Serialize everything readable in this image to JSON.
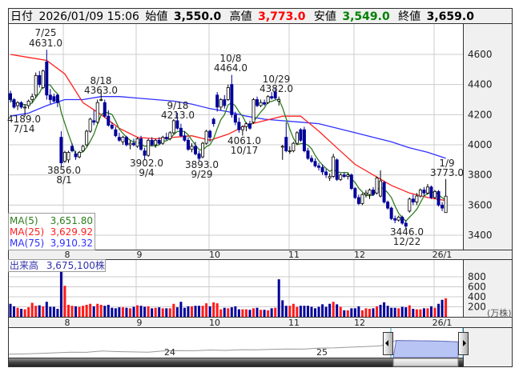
{
  "header": {
    "date_label": "日付",
    "date_value": "2026/01/09 15:06",
    "open_label": "始値",
    "open_value": "3,550.0",
    "high_label": "高値",
    "high_value": "3,773.0",
    "low_label": "安値",
    "low_value": "3,549.0",
    "close_label": "終値",
    "close_value": "3,659.0"
  },
  "colors": {
    "up_candle": "#ffffff",
    "down_candle": "#000099",
    "ma5": "#2e7d1e",
    "ma25": "#ff2020",
    "ma75": "#3030ff",
    "vol_up": "#ff1a1a",
    "vol_down": "#000099",
    "high": "#ff0000",
    "low": "#008000",
    "navigator_fill": "#b8c4f4"
  },
  "legend": [
    {
      "name": "MA(5)",
      "value": "3,651.80"
    },
    {
      "name": "MA(25)",
      "value": "3,629.92"
    },
    {
      "name": "MA(75)",
      "value": "3,910.32"
    }
  ],
  "volume_panel": {
    "label": "出来高",
    "value": "3,675,100株",
    "unit": "(万株)",
    "ticks": [
      "800",
      "600",
      "400",
      "200"
    ]
  },
  "chart_data": {
    "type": "candlestick",
    "price_ticks": [
      "4600",
      "4400",
      "4200",
      "4000",
      "3800",
      "3600",
      "3400"
    ],
    "ylim": [
      3300,
      4700
    ],
    "month_labels": [
      "8",
      "9",
      "10",
      "11",
      "12",
      "26/1"
    ],
    "annotations": [
      {
        "date": "7/25",
        "value": "4631.0"
      },
      {
        "date": "7/14",
        "value": "4189.0"
      },
      {
        "date": "8/1",
        "value": "3856.0"
      },
      {
        "date": "8/18",
        "value": "4363.0"
      },
      {
        "date": "9/4",
        "value": "3902.0"
      },
      {
        "date": "9/18",
        "value": "4213.0"
      },
      {
        "date": "9/29",
        "value": "3893.0"
      },
      {
        "date": "10/8",
        "value": "4464.0"
      },
      {
        "date": "10/17",
        "value": "4061.0"
      },
      {
        "date": "10/29",
        "value": "4382.0"
      },
      {
        "date": "12/22",
        "value": "3446.0"
      },
      {
        "date": "1/9",
        "value": "3773.0"
      }
    ],
    "candles_ohlc": [
      [
        4340,
        4360,
        4280,
        4300
      ],
      [
        4300,
        4310,
        4240,
        4250
      ],
      [
        4260,
        4290,
        4230,
        4280
      ],
      [
        4280,
        4290,
        4240,
        4250
      ],
      [
        4250,
        4270,
        4189,
        4250
      ],
      [
        4260,
        4300,
        4240,
        4290
      ],
      [
        4300,
        4340,
        4280,
        4320
      ],
      [
        4330,
        4480,
        4310,
        4460
      ],
      [
        4460,
        4490,
        4380,
        4400
      ],
      [
        4380,
        4500,
        4370,
        4490
      ],
      [
        4550,
        4631,
        4300,
        4330
      ],
      [
        4330,
        4370,
        4270,
        4300
      ],
      [
        4320,
        4340,
        4280,
        4290
      ],
      [
        4330,
        4340,
        4250,
        4280
      ],
      [
        4050,
        4090,
        3856,
        3880
      ],
      [
        3890,
        3960,
        3880,
        3950
      ],
      [
        3900,
        3960,
        3880,
        3950
      ],
      [
        3990,
        4010,
        3950,
        3960
      ],
      [
        3940,
        3960,
        3900,
        3920
      ],
      [
        3920,
        3960,
        3910,
        3950
      ],
      [
        3960,
        4000,
        3950,
        3990
      ],
      [
        4000,
        4100,
        3990,
        4090
      ],
      [
        4090,
        4180,
        4080,
        4170
      ],
      [
        4160,
        4230,
        4130,
        4150
      ],
      [
        4150,
        4300,
        4140,
        4280
      ],
      [
        4300,
        4363,
        4290,
        4300
      ],
      [
        4280,
        4300,
        4180,
        4190
      ],
      [
        4190,
        4230,
        4120,
        4130
      ],
      [
        4130,
        4150,
        4100,
        4110
      ],
      [
        4100,
        4120,
        4050,
        4060
      ],
      [
        4050,
        4080,
        4020,
        4030
      ],
      [
        4020,
        4060,
        4000,
        4050
      ],
      [
        4050,
        4060,
        3990,
        4000
      ],
      [
        4000,
        4030,
        3970,
        4010
      ],
      [
        4010,
        4040,
        3990,
        4000
      ],
      [
        3990,
        4050,
        3980,
        4040
      ],
      [
        4040,
        4060,
        3960,
        3970
      ],
      [
        3960,
        3980,
        3902,
        3930
      ],
      [
        3930,
        4040,
        3920,
        4030
      ],
      [
        4030,
        4050,
        3990,
        4000
      ],
      [
        4000,
        4040,
        3980,
        4030
      ],
      [
        4030,
        4050,
        4000,
        4010
      ],
      [
        4010,
        4060,
        4000,
        4050
      ],
      [
        4050,
        4080,
        4030,
        4040
      ],
      [
        4040,
        4090,
        4030,
        4080
      ],
      [
        4080,
        4170,
        4070,
        4160
      ],
      [
        4160,
        4213,
        4100,
        4110
      ],
      [
        4110,
        4140,
        4050,
        4060
      ],
      [
        4060,
        4090,
        4020,
        4030
      ],
      [
        4030,
        4050,
        3960,
        3970
      ],
      [
        3970,
        4010,
        3950,
        3990
      ],
      [
        3990,
        4020,
        3930,
        3940
      ],
      [
        3940,
        3960,
        3893,
        3910
      ],
      [
        3920,
        4020,
        3910,
        4010
      ],
      [
        4010,
        4100,
        4000,
        4090
      ],
      [
        4090,
        4100,
        4020,
        4050
      ],
      [
        4170,
        4180,
        4120,
        4140
      ],
      [
        4330,
        4350,
        4220,
        4250
      ],
      [
        4250,
        4310,
        4230,
        4300
      ],
      [
        4300,
        4330,
        4240,
        4260
      ],
      [
        4300,
        4400,
        4290,
        4380
      ],
      [
        4400,
        4464,
        4180,
        4200
      ],
      [
        4200,
        4220,
        4130,
        4150
      ],
      [
        4150,
        4180,
        4080,
        4100
      ],
      [
        4100,
        4130,
        4061,
        4120
      ],
      [
        4120,
        4150,
        4090,
        4140
      ],
      [
        4140,
        4160,
        4100,
        4110
      ],
      [
        4150,
        4310,
        4140,
        4300
      ],
      [
        4300,
        4320,
        4250,
        4260
      ],
      [
        4260,
        4300,
        4250,
        4280
      ],
      [
        4280,
        4300,
        4260,
        4270
      ],
      [
        4280,
        4330,
        4270,
        4320
      ],
      [
        4320,
        4350,
        4300,
        4310
      ],
      [
        4350,
        4382,
        4300,
        4310
      ],
      [
        4290,
        4320,
        4260,
        4300
      ],
      [
        3990,
        4000,
        3900,
        3990
      ],
      [
        4050,
        4150,
        3950,
        3960
      ],
      [
        3960,
        3990,
        3940,
        3960
      ],
      [
        3960,
        4020,
        3950,
        4010
      ],
      [
        4010,
        4090,
        4000,
        4080
      ],
      [
        4100,
        4110,
        4020,
        4030
      ],
      [
        4100,
        4120,
        3950,
        3960
      ],
      [
        3960,
        3980,
        3900,
        3910
      ],
      [
        3910,
        3930,
        3880,
        3890
      ],
      [
        3890,
        3910,
        3850,
        3860
      ],
      [
        3860,
        3880,
        3830,
        3850
      ],
      [
        3850,
        3870,
        3800,
        3820
      ],
      [
        3820,
        3840,
        3780,
        3800
      ],
      [
        3780,
        3810,
        3760,
        3790
      ],
      [
        3790,
        3940,
        3780,
        3920
      ],
      [
        3900,
        3910,
        3760,
        3770
      ],
      [
        3770,
        3810,
        3760,
        3800
      ],
      [
        3800,
        3820,
        3780,
        3790
      ],
      [
        3790,
        3810,
        3770,
        3800
      ],
      [
        3800,
        3810,
        3700,
        3710
      ],
      [
        3710,
        3720,
        3640,
        3650
      ],
      [
        3650,
        3670,
        3600,
        3610
      ],
      [
        3610,
        3680,
        3600,
        3670
      ],
      [
        3670,
        3700,
        3650,
        3680
      ],
      [
        3670,
        3710,
        3640,
        3700
      ],
      [
        3700,
        3720,
        3660,
        3670
      ],
      [
        3680,
        3790,
        3670,
        3780
      ],
      [
        3660,
        3830,
        3650,
        3760
      ],
      [
        3750,
        3760,
        3610,
        3620
      ],
      [
        3620,
        3630,
        3570,
        3580
      ],
      [
        3580,
        3590,
        3500,
        3510
      ],
      [
        3510,
        3530,
        3480,
        3500
      ],
      [
        3500,
        3530,
        3490,
        3520
      ],
      [
        3520,
        3530,
        3470,
        3480
      ],
      [
        3480,
        3500,
        3446,
        3460
      ],
      [
        3560,
        3650,
        3550,
        3640
      ],
      [
        3640,
        3670,
        3600,
        3620
      ],
      [
        3620,
        3680,
        3600,
        3660
      ],
      [
        3660,
        3710,
        3650,
        3700
      ],
      [
        3700,
        3720,
        3660,
        3680
      ],
      [
        3680,
        3740,
        3670,
        3720
      ],
      [
        3720,
        3730,
        3640,
        3650
      ],
      [
        3650,
        3700,
        3640,
        3690
      ],
      [
        3690,
        3700,
        3590,
        3600
      ],
      [
        3600,
        3620,
        3560,
        3580
      ],
      [
        3550,
        3773,
        3549,
        3659
      ]
    ],
    "ma25_sampled_every_5": [
      4600,
      4580,
      4560,
      4470,
      4280,
      4200,
      4110,
      4050,
      4040,
      4050,
      4060,
      4030,
      4070,
      4130,
      4160,
      4190,
      4190,
      4090,
      3980,
      3870,
      3800,
      3730,
      3680,
      3650,
      3630
    ],
    "ma75_sampled_every_5": [
      4190,
      4210,
      4260,
      4300,
      4300,
      4320,
      4320,
      4310,
      4300,
      4290,
      4270,
      4240,
      4220,
      4190,
      4170,
      4160,
      4150,
      4140,
      4110,
      4080,
      4050,
      4020,
      3980,
      3950,
      3910
    ],
    "volume_man_shares": [
      260,
      210,
      180,
      160,
      150,
      190,
      280,
      220,
      230,
      210,
      300,
      200,
      200,
      160,
      920,
      620,
      240,
      220,
      210,
      200,
      220,
      240,
      260,
      210,
      260,
      240,
      220,
      240,
      180,
      170,
      190,
      190,
      180,
      170,
      200,
      230,
      220,
      200,
      210,
      170,
      180,
      190,
      170,
      170,
      170,
      260,
      190,
      300,
      180,
      210,
      210,
      220,
      220,
      220,
      270,
      210,
      290,
      270,
      150,
      180,
      170,
      190,
      210,
      150,
      150,
      150,
      140,
      170,
      180,
      140,
      140,
      130,
      170,
      180,
      750,
      330,
      220,
      220,
      260,
      200,
      220,
      220,
      220,
      200,
      170,
      200,
      250,
      200,
      260,
      300,
      250,
      200,
      130,
      130,
      170,
      170,
      210,
      130,
      170,
      160,
      170,
      210,
      240,
      290,
      220,
      180,
      180,
      170,
      200,
      190,
      230,
      160,
      150,
      150,
      170,
      170,
      210,
      180,
      260,
      340,
      370
    ],
    "navigator": {
      "year_labels": [
        "24",
        "25"
      ],
      "history": [
        3000,
        3020,
        3050,
        3080,
        3120,
        3110,
        3180,
        3150,
        3130,
        3120,
        3190,
        3210,
        3200,
        3240,
        3220,
        3260,
        3250,
        3280,
        3300,
        3290,
        3350,
        3360,
        3400,
        3430,
        3480,
        3780,
        3770,
        3760,
        3740,
        3700
      ]
    }
  }
}
